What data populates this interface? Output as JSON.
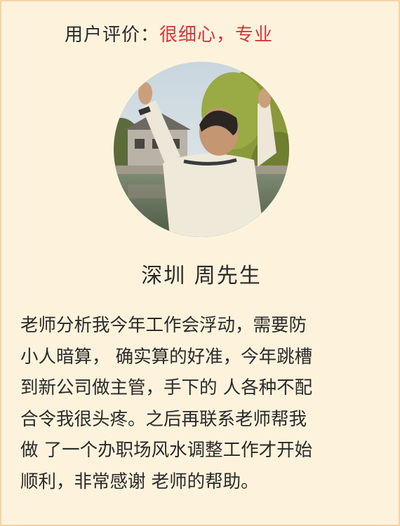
{
  "rating": {
    "label": "用户评价：",
    "value": "很细心，专业"
  },
  "avatar": {
    "icon": "person-photo"
  },
  "customer": {
    "name": "深圳 周先生"
  },
  "review": {
    "lines": [
      "老师分析我今年工作会浮动，需要防",
      "小人暗算， 确实算的好准，今年跳槽",
      "到新公司做主管，手下的 人各种不配",
      "合令我很头疼。之后再联系老师帮我",
      "做 了一个办职场风水调整工作才开始",
      "顺利，非常感谢 老师的帮助。"
    ]
  },
  "colors": {
    "background": "#fdf3dc",
    "border": "#f2d6a6",
    "accent": "#d9343f",
    "text": "#2a2a2a"
  }
}
